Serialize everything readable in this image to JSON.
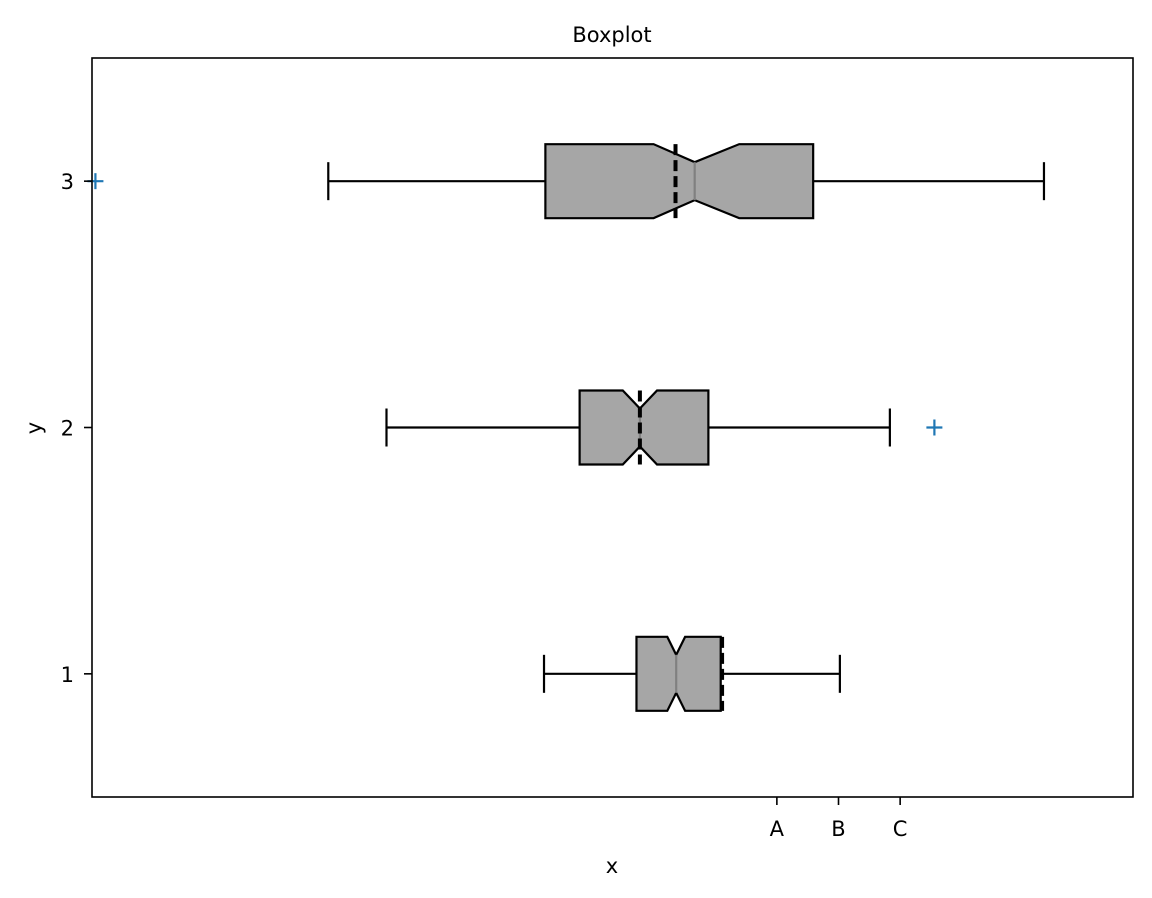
{
  "chart_data": {
    "type": "boxplot",
    "orientation": "horizontal",
    "title": "Boxplot",
    "xlabel": "x",
    "ylabel": "y",
    "xlim": [
      -0.2,
      1.32
    ],
    "ylim": [
      0.5,
      3.5
    ],
    "x_ticks": [
      {
        "value": 0.8,
        "label": "A"
      },
      {
        "value": 0.89,
        "label": "B"
      },
      {
        "value": 0.98,
        "label": "C"
      }
    ],
    "y_ticks": [
      {
        "value": 1,
        "label": "1"
      },
      {
        "value": 2,
        "label": "2"
      },
      {
        "value": 3,
        "label": "3"
      }
    ],
    "grid": false,
    "box_color": "#a6a6a6",
    "median_color": "#808080",
    "mean_line_color": "#000000",
    "flier_color": "#1f77b4",
    "flier_marker": "+",
    "boxes": [
      {
        "position": 1,
        "whisker_low": 0.46,
        "q1": 0.595,
        "notch_low": 0.64,
        "median": 0.653,
        "notch_high": 0.666,
        "q3": 0.718,
        "whisker_high": 0.892,
        "mean": 0.72,
        "fliers": []
      },
      {
        "position": 2,
        "whisker_low": 0.23,
        "q1": 0.512,
        "notch_low": 0.575,
        "median": 0.6,
        "notch_high": 0.625,
        "q3": 0.7,
        "whisker_high": 0.965,
        "mean": 0.6,
        "fliers": [
          1.03
        ]
      },
      {
        "position": 3,
        "whisker_low": 0.145,
        "q1": 0.462,
        "notch_low": 0.62,
        "median": 0.68,
        "notch_high": 0.745,
        "q3": 0.853,
        "whisker_high": 1.19,
        "mean": 0.652,
        "fliers": [
          -0.195
        ]
      }
    ]
  }
}
